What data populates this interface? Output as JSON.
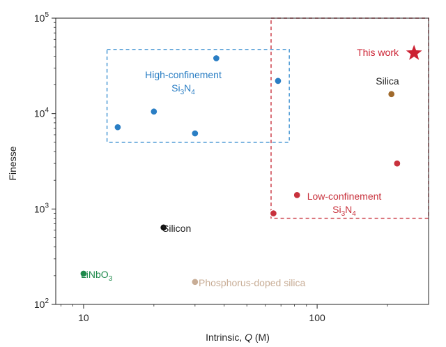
{
  "chart_data": {
    "type": "scatter",
    "title": "",
    "xscale": "log",
    "yscale": "log",
    "xlim": [
      7.6,
      300
    ],
    "ylim": [
      100,
      100000
    ],
    "xlabel": {
      "prefix": "Intrinsic, ",
      "italic": "Q",
      "suffix": " (M)"
    },
    "ylabel": "Finesse",
    "xticks": [
      {
        "value": 10,
        "label": "10"
      },
      {
        "value": 100,
        "label": "100"
      }
    ],
    "yticks": [
      {
        "value": 100,
        "base": "10",
        "exp": "2"
      },
      {
        "value": 1000,
        "base": "10",
        "exp": "3"
      },
      {
        "value": 10000,
        "base": "10",
        "exp": "4"
      },
      {
        "value": 100000,
        "base": "10",
        "exp": "5"
      }
    ],
    "series": [
      {
        "name": "High-confinement Si3N4",
        "color": "#2a7ec4",
        "marker": "circle",
        "points": [
          {
            "x": 14,
            "y": 7200
          },
          {
            "x": 20,
            "y": 10500
          },
          {
            "x": 30,
            "y": 6200
          },
          {
            "x": 37,
            "y": 38000
          },
          {
            "x": 68,
            "y": 22000
          }
        ]
      },
      {
        "name": "Low-confinement Si3N4",
        "color": "#c8313c",
        "marker": "circle",
        "points": [
          {
            "x": 65,
            "y": 900
          },
          {
            "x": 82,
            "y": 1400
          },
          {
            "x": 220,
            "y": 3000
          }
        ]
      },
      {
        "name": "This work",
        "color": "#cc2233",
        "marker": "star",
        "points": [
          {
            "x": 260,
            "y": 43000
          }
        ]
      },
      {
        "name": "Silica",
        "color": "#a06a2c",
        "marker": "circle",
        "points": [
          {
            "x": 208,
            "y": 16000
          }
        ]
      },
      {
        "name": "Silicon",
        "color": "#111111",
        "marker": "circle",
        "points": [
          {
            "x": 22,
            "y": 640
          }
        ]
      },
      {
        "name": "LiNbO3",
        "color": "#1f8a4c",
        "marker": "circle",
        "points": [
          {
            "x": 10,
            "y": 210
          }
        ]
      },
      {
        "name": "Phosphorus-doped silica",
        "color": "#c8ad96",
        "marker": "circle",
        "points": [
          {
            "x": 30,
            "y": 172
          }
        ]
      }
    ],
    "regions": [
      {
        "name": "high-confinement-region",
        "color": "#3a8fd0",
        "x": [
          12.6,
          76
        ],
        "y": [
          5000,
          47000
        ]
      },
      {
        "name": "low-confinement-region",
        "color": "#c8313c",
        "x": [
          63.5,
          300
        ],
        "y": [
          800,
          100000
        ]
      }
    ],
    "annotations": {
      "high_confinement": {
        "line1": "High-confinement",
        "si": "Si",
        "sub3": "3",
        "n": "N",
        "sub4": "4",
        "color": "#2a7ec4"
      },
      "low_confinement": {
        "line1": "Low-confinement",
        "si": "Si",
        "sub3": "3",
        "n": "N",
        "sub4": "4",
        "color": "#c8313c"
      },
      "this_work": {
        "text": "This work",
        "color": "#cc2233"
      },
      "silica": {
        "text": "Silica",
        "color": "#222222"
      },
      "silicon": {
        "text": "Silicon",
        "color": "#222222"
      },
      "linbo3": {
        "main": "LiNbO",
        "sub": "3",
        "color": "#1f8a4c"
      },
      "phosphorus": {
        "text": "Phosphorus-doped silica",
        "color": "#c8ad96"
      }
    }
  }
}
